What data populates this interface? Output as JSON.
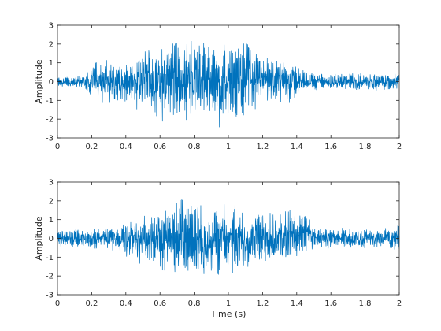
{
  "chart_data": [
    {
      "type": "line",
      "title": "",
      "xlabel": "",
      "ylabel": "Amplitude",
      "xlim": [
        0,
        2
      ],
      "ylim": [
        -3,
        3
      ],
      "xticks": [
        0,
        0.2,
        0.4,
        0.6,
        0.8,
        1,
        1.2,
        1.4,
        1.6,
        1.8,
        2
      ],
      "xtick_labels": [
        "0",
        "0.2",
        "0.4",
        "0.6",
        "0.8",
        "1",
        "1.2",
        "1.4",
        "1.6",
        "1.8",
        "2"
      ],
      "yticks": [
        -3,
        -2,
        -1,
        0,
        1,
        2,
        3
      ],
      "ytick_labels": [
        "-3",
        "-2",
        "-1",
        "0",
        "1",
        "2",
        "3"
      ],
      "grid": false,
      "series": [
        {
          "color": "#0072BD",
          "x": [
            0,
            0.1,
            0.15,
            0.2,
            0.25,
            0.3,
            0.35,
            0.4,
            0.45,
            0.5,
            0.55,
            0.6,
            0.65,
            0.7,
            0.75,
            0.8,
            0.85,
            0.9,
            0.95,
            1.0,
            1.05,
            1.1,
            1.15,
            1.2,
            1.25,
            1.3,
            1.35,
            1.4,
            1.45,
            1.5,
            1.6,
            1.7,
            1.8,
            1.9,
            2.0
          ],
          "envelope_max": [
            0.3,
            0.35,
            0.4,
            1.1,
            1.2,
            1.2,
            1.2,
            1.3,
            1.2,
            2.2,
            2.0,
            2.1,
            2.2,
            2.4,
            2.2,
            2.3,
            2.4,
            2.3,
            2.2,
            1.9,
            2.1,
            2.5,
            2.0,
            1.4,
            1.3,
            1.3,
            1.2,
            0.9,
            0.6,
            0.5,
            0.45,
            0.5,
            0.5,
            0.5,
            0.5
          ],
          "envelope_min": [
            -0.3,
            -0.35,
            -0.4,
            -1.1,
            -1.2,
            -1.2,
            -1.3,
            -1.4,
            -1.3,
            -2.0,
            -1.8,
            -2.1,
            -2.5,
            -2.1,
            -2.2,
            -2.0,
            -2.4,
            -2.0,
            -2.5,
            -1.9,
            -2.1,
            -2.0,
            -1.7,
            -1.4,
            -1.3,
            -1.3,
            -1.2,
            -0.9,
            -0.5,
            -0.5,
            -0.45,
            -0.5,
            -0.5,
            -0.5,
            -0.5
          ]
        }
      ]
    },
    {
      "type": "line",
      "title": "",
      "xlabel": "Time (s)",
      "ylabel": "Amplitude",
      "xlim": [
        0,
        2
      ],
      "ylim": [
        -3,
        3
      ],
      "xticks": [
        0,
        0.2,
        0.4,
        0.6,
        0.8,
        1,
        1.2,
        1.4,
        1.6,
        1.8,
        2
      ],
      "xtick_labels": [
        "0",
        "0.2",
        "0.4",
        "0.6",
        "0.8",
        "1",
        "1.2",
        "1.4",
        "1.6",
        "1.8",
        "2"
      ],
      "yticks": [
        -3,
        -2,
        -1,
        0,
        1,
        2,
        3
      ],
      "ytick_labels": [
        "-3",
        "-2",
        "-1",
        "0",
        "1",
        "2",
        "3"
      ],
      "grid": false,
      "series": [
        {
          "color": "#0072BD",
          "x": [
            0,
            0.1,
            0.2,
            0.3,
            0.35,
            0.4,
            0.45,
            0.5,
            0.55,
            0.6,
            0.65,
            0.7,
            0.75,
            0.8,
            0.85,
            0.9,
            0.95,
            1.0,
            1.05,
            1.1,
            1.15,
            1.2,
            1.25,
            1.3,
            1.35,
            1.4,
            1.45,
            1.5,
            1.6,
            1.7,
            1.8,
            1.9,
            2.0
          ],
          "envelope_max": [
            0.5,
            0.55,
            0.6,
            0.6,
            0.7,
            1.3,
            1.4,
            1.5,
            1.8,
            1.8,
            1.9,
            2.2,
            2.3,
            2.0,
            2.1,
            2.1,
            1.9,
            2.2,
            2.0,
            1.6,
            1.7,
            1.4,
            1.6,
            1.4,
            1.7,
            1.5,
            1.6,
            0.7,
            0.6,
            0.55,
            0.6,
            0.6,
            0.8
          ],
          "envelope_min": [
            -0.5,
            -0.55,
            -0.6,
            -0.6,
            -0.7,
            -1.3,
            -1.4,
            -1.6,
            -1.9,
            -1.9,
            -2.0,
            -2.0,
            -2.7,
            -2.1,
            -2.5,
            -2.2,
            -2.0,
            -1.9,
            -2.3,
            -1.7,
            -1.6,
            -1.5,
            -1.7,
            -1.4,
            -1.3,
            -1.2,
            -0.9,
            -0.7,
            -0.6,
            -0.55,
            -0.6,
            -0.6,
            -0.7
          ]
        }
      ]
    }
  ]
}
